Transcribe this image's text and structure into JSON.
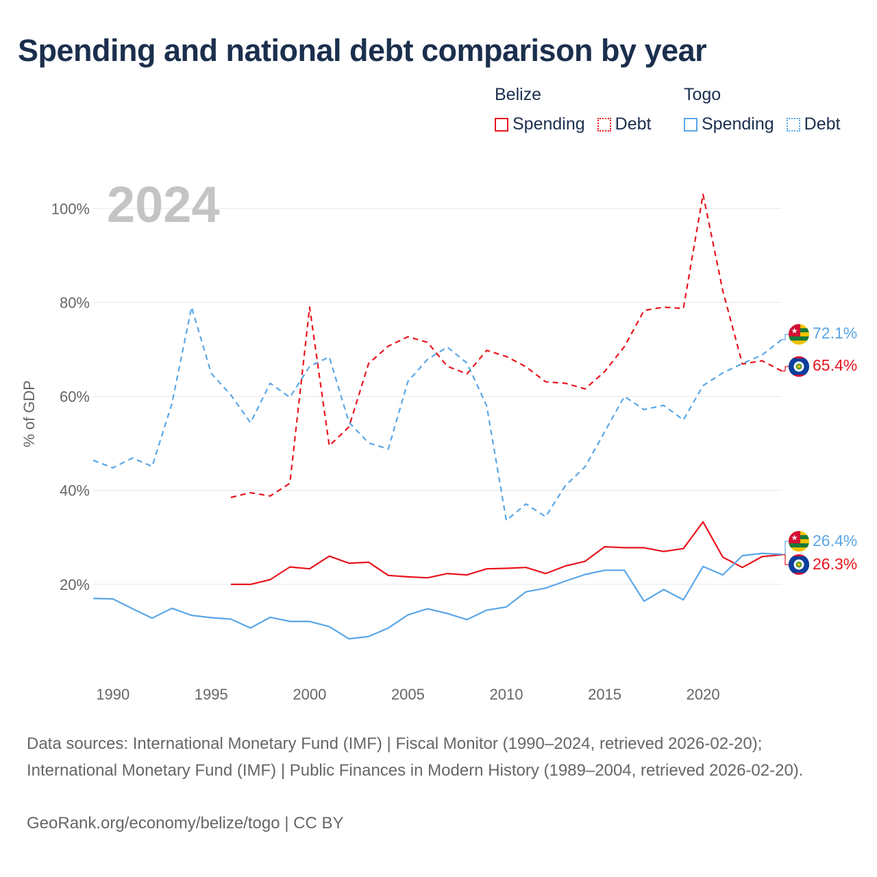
{
  "title": "Spending and national debt comparison by year",
  "legend": {
    "groups": [
      {
        "name": "Belize",
        "color": "#e8141c",
        "items": [
          "Spending",
          "Debt"
        ]
      },
      {
        "name": "Togo",
        "color": "#5aa6e6",
        "items": [
          "Spending",
          "Debt"
        ]
      }
    ]
  },
  "year_watermark": "2024",
  "sources": "Data sources: International Monetary Fund (IMF) | Fiscal Monitor (1990–2024, retrieved 2026-02-20); International Monetary Fund (IMF) | Public Finances in Modern History (1989–2004, retrieved 2026-02-20).",
  "credit": "GeoRank.org/economy/belize/togo | CC BY",
  "end_labels": [
    {
      "text": "72.1%",
      "country": "Togo",
      "color": "#5aa6e6",
      "icon": "togo-flag-icon"
    },
    {
      "text": "65.4%",
      "country": "Belize",
      "color": "#e8141c",
      "icon": "belize-flag-icon"
    },
    {
      "text": "26.4%",
      "country": "Togo",
      "color": "#5aa6e6",
      "icon": "togo-flag-icon"
    },
    {
      "text": "26.3%",
      "country": "Belize",
      "color": "#e8141c",
      "icon": "belize-flag-icon"
    }
  ],
  "chart_data": {
    "type": "line",
    "title": "Spending and national debt comparison by year",
    "xlabel": "",
    "ylabel": "% of GDP",
    "xlim": [
      1989,
      2024
    ],
    "ylim": [
      0,
      105
    ],
    "xticks": [
      1990,
      1995,
      2000,
      2005,
      2010,
      2015,
      2020
    ],
    "yticks": [
      20,
      40,
      60,
      80,
      100
    ],
    "ytick_labels": [
      "20%",
      "40%",
      "60%",
      "80%",
      "100%"
    ],
    "grid": true,
    "series": [
      {
        "name": "Belize Spending",
        "country": "Belize",
        "measure": "Spending",
        "color": "#e8141c",
        "style": "solid",
        "x": [
          1996,
          1997,
          1998,
          1999,
          2000,
          2001,
          2002,
          2003,
          2004,
          2005,
          2006,
          2007,
          2008,
          2009,
          2010,
          2011,
          2012,
          2013,
          2014,
          2015,
          2016,
          2017,
          2018,
          2019,
          2020,
          2021,
          2022,
          2023,
          2024
        ],
        "values": [
          20.0,
          20.0,
          21.0,
          23.7,
          23.3,
          26.0,
          24.5,
          24.7,
          21.9,
          21.6,
          21.4,
          22.3,
          22.0,
          23.3,
          23.4,
          23.6,
          22.3,
          23.9,
          24.9,
          28.0,
          27.8,
          27.8,
          27.0,
          27.6,
          33.3,
          25.8,
          23.6,
          25.9,
          26.3
        ]
      },
      {
        "name": "Belize Debt",
        "country": "Belize",
        "measure": "Debt",
        "color": "#e8141c",
        "style": "dashed",
        "x": [
          1996,
          1997,
          1998,
          1999,
          2000,
          2001,
          2002,
          2003,
          2004,
          2005,
          2006,
          2007,
          2008,
          2009,
          2010,
          2011,
          2012,
          2013,
          2014,
          2015,
          2016,
          2017,
          2018,
          2019,
          2020,
          2021,
          2022,
          2023,
          2024
        ],
        "values": [
          38.5,
          39.5,
          38.8,
          41.5,
          79.0,
          49.5,
          53.5,
          67.0,
          70.7,
          72.7,
          71.5,
          66.4,
          64.8,
          69.8,
          68.5,
          66.3,
          63.1,
          62.8,
          61.6,
          65.3,
          70.6,
          78.3,
          79.0,
          78.7,
          103.0,
          82.5,
          66.9,
          67.6,
          65.4
        ]
      },
      {
        "name": "Togo Spending",
        "country": "Togo",
        "measure": "Spending",
        "color": "#5aa6e6",
        "style": "solid",
        "x": [
          1989,
          1990,
          1991,
          1992,
          1993,
          1994,
          1995,
          1996,
          1997,
          1998,
          1999,
          2000,
          2001,
          2002,
          2003,
          2004,
          2005,
          2006,
          2007,
          2008,
          2009,
          2010,
          2011,
          2012,
          2013,
          2014,
          2015,
          2016,
          2017,
          2018,
          2019,
          2020,
          2021,
          2022,
          2023,
          2024
        ],
        "values": [
          17.0,
          16.9,
          14.8,
          12.8,
          14.9,
          13.4,
          12.9,
          12.6,
          10.7,
          13.0,
          12.1,
          12.1,
          11.0,
          8.4,
          8.9,
          10.7,
          13.5,
          14.8,
          13.8,
          12.5,
          14.5,
          15.2,
          18.4,
          19.2,
          20.7,
          22.1,
          23.0,
          23.0,
          16.4,
          18.9,
          16.7,
          23.8,
          22.0,
          26.1,
          26.6,
          26.4
        ]
      },
      {
        "name": "Togo Debt",
        "country": "Togo",
        "measure": "Debt",
        "color": "#5aa6e6",
        "style": "dashed",
        "x": [
          1989,
          1990,
          1991,
          1992,
          1993,
          1994,
          1995,
          1996,
          1997,
          1998,
          1999,
          2000,
          2001,
          2002,
          2003,
          2004,
          2005,
          2006,
          2007,
          2008,
          2009,
          2010,
          2011,
          2012,
          2013,
          2014,
          2015,
          2016,
          2017,
          2018,
          2019,
          2020,
          2021,
          2022,
          2023,
          2024
        ],
        "values": [
          46.4,
          44.8,
          46.9,
          45.1,
          58.5,
          79.0,
          64.9,
          60.3,
          54.4,
          62.8,
          59.8,
          66.4,
          68.4,
          54.5,
          50.1,
          48.8,
          63.2,
          67.9,
          70.5,
          67.1,
          58.0,
          33.6,
          37.1,
          34.4,
          41.0,
          45.0,
          52.5,
          60.0,
          57.2,
          58.1,
          55.0,
          62.3,
          65.0,
          67.0,
          68.8,
          72.1
        ]
      }
    ]
  }
}
